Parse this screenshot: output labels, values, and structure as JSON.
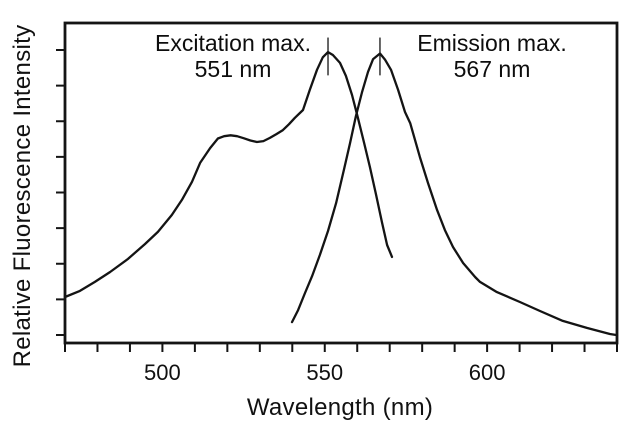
{
  "figure": {
    "y_axis_label": "Relative Fluorescence Intensity",
    "x_axis_label": "Wavelength (nm)"
  },
  "annotations": {
    "excitation": {
      "line1": "Excitation max.",
      "line2": "551 nm"
    },
    "emission": {
      "line1": "Emission max.",
      "line2": "567 nm"
    }
  },
  "colors": {
    "ink": "#141414",
    "background": "#ffffff"
  },
  "chart_data": {
    "type": "line",
    "title": "",
    "xlabel": "Wavelength (nm)",
    "ylabel": "Relative Fluorescence Intensity",
    "xlim": [
      470,
      640
    ],
    "ylim": [
      0,
      1.1
    ],
    "grid": false,
    "legend": "none",
    "x_tick_interval": 10,
    "x_tick_labels": [
      {
        "value": 500,
        "label": "500"
      },
      {
        "value": 550,
        "label": "550"
      },
      {
        "value": 600,
        "label": "600"
      }
    ],
    "y_ticks": {
      "count": 9,
      "labeled": false
    },
    "peak_markers": [
      {
        "nm": 551,
        "i_from": 0.92,
        "i_to": 1.05
      },
      {
        "nm": 567,
        "i_from": 0.92,
        "i_to": 1.05
      }
    ],
    "series": [
      {
        "name": "Excitation spectrum",
        "peak_nm": 551,
        "points": [
          [
            470.0,
            0.158
          ],
          [
            474.6,
            0.179
          ],
          [
            479.2,
            0.21
          ],
          [
            483.9,
            0.244
          ],
          [
            489.4,
            0.289
          ],
          [
            494.6,
            0.34
          ],
          [
            498.6,
            0.382
          ],
          [
            502.9,
            0.44
          ],
          [
            506.0,
            0.492
          ],
          [
            509.1,
            0.554
          ],
          [
            511.6,
            0.619
          ],
          [
            514.7,
            0.67
          ],
          [
            517.1,
            0.703
          ],
          [
            519.0,
            0.711
          ],
          [
            521.0,
            0.714
          ],
          [
            523.0,
            0.711
          ],
          [
            525.0,
            0.704
          ],
          [
            527.1,
            0.696
          ],
          [
            529.1,
            0.691
          ],
          [
            531.1,
            0.694
          ],
          [
            533.1,
            0.705
          ],
          [
            535.1,
            0.718
          ],
          [
            537.1,
            0.732
          ],
          [
            539.0,
            0.752
          ],
          [
            540.8,
            0.774
          ],
          [
            543.3,
            0.801
          ],
          [
            545.4,
            0.87
          ],
          [
            547.6,
            0.939
          ],
          [
            549.4,
            0.982
          ],
          [
            551.0,
            1.0
          ],
          [
            552.5,
            0.99
          ],
          [
            554.7,
            0.963
          ],
          [
            556.5,
            0.918
          ],
          [
            558.4,
            0.853
          ],
          [
            560.2,
            0.774
          ],
          [
            562.1,
            0.688
          ],
          [
            563.9,
            0.605
          ],
          [
            565.8,
            0.509
          ],
          [
            567.6,
            0.416
          ],
          [
            569.2,
            0.337
          ],
          [
            570.7,
            0.296
          ]
        ]
      },
      {
        "name": "Emission spectrum",
        "peak_nm": 567,
        "points": [
          [
            539.9,
            0.072
          ],
          [
            541.8,
            0.113
          ],
          [
            543.9,
            0.172
          ],
          [
            546.1,
            0.23
          ],
          [
            548.5,
            0.303
          ],
          [
            551.0,
            0.385
          ],
          [
            553.5,
            0.481
          ],
          [
            555.9,
            0.595
          ],
          [
            557.8,
            0.688
          ],
          [
            559.6,
            0.78
          ],
          [
            561.5,
            0.863
          ],
          [
            563.3,
            0.932
          ],
          [
            564.9,
            0.976
          ],
          [
            567.0,
            0.995
          ],
          [
            568.6,
            0.973
          ],
          [
            570.4,
            0.939
          ],
          [
            572.6,
            0.87
          ],
          [
            574.7,
            0.794
          ],
          [
            576.3,
            0.756
          ],
          [
            579.3,
            0.639
          ],
          [
            581.8,
            0.55
          ],
          [
            584.6,
            0.457
          ],
          [
            587.0,
            0.388
          ],
          [
            589.5,
            0.33
          ],
          [
            592.6,
            0.275
          ],
          [
            596.3,
            0.227
          ],
          [
            597.8,
            0.21
          ],
          [
            603.0,
            0.175
          ],
          [
            610.1,
            0.141
          ],
          [
            616.3,
            0.11
          ],
          [
            623.3,
            0.076
          ],
          [
            630.7,
            0.052
          ],
          [
            637.8,
            0.031
          ],
          [
            640.0,
            0.027
          ]
        ]
      }
    ]
  }
}
